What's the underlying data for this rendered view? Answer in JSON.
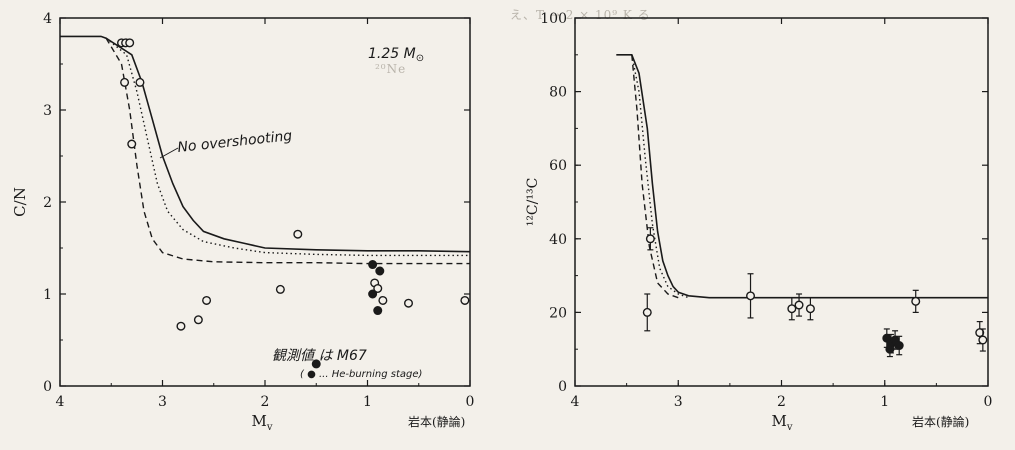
{
  "background_text": {
    "top": "え、T  → 2 × 10⁹ K  る",
    "mid": "²⁰Ne"
  },
  "chart_data": [
    {
      "type": "line",
      "title": "",
      "xlabel": "M",
      "xlabel_sub": "v",
      "ylabel": "C/N",
      "xlim": [
        4,
        0
      ],
      "ylim": [
        0,
        4
      ],
      "xticks": [
        "4",
        "3",
        "2",
        "1",
        "0"
      ],
      "yticks": [
        "0",
        "1",
        "2",
        "3",
        "4"
      ],
      "annotations": {
        "mass": "1.25 M",
        "mass_symbol": "⊙",
        "no_overshooting": "No overshooting",
        "observed": "観測値 は M67",
        "he_burning": "( ● ... He-burning stage)",
        "credit": "岩本(静論)"
      },
      "series": [
        {
          "style": "solid",
          "x": [
            4.0,
            3.6,
            3.55,
            3.3,
            3.2,
            3.1,
            3.0,
            2.9,
            2.8,
            2.7,
            2.6,
            2.4,
            2.2,
            2.0,
            1.5,
            1.0,
            0.5,
            0.0
          ],
          "y": [
            3.8,
            3.8,
            3.78,
            3.6,
            3.3,
            2.9,
            2.5,
            2.2,
            1.95,
            1.8,
            1.68,
            1.6,
            1.55,
            1.5,
            1.48,
            1.47,
            1.47,
            1.46
          ]
        },
        {
          "style": "dotted",
          "x": [
            3.55,
            3.35,
            3.25,
            3.15,
            3.05,
            2.95,
            2.8,
            2.6,
            2.3,
            2.0,
            1.5,
            1.0,
            0.5,
            0.0
          ],
          "y": [
            3.78,
            3.6,
            3.2,
            2.7,
            2.2,
            1.9,
            1.7,
            1.57,
            1.5,
            1.45,
            1.43,
            1.42,
            1.42,
            1.42
          ]
        },
        {
          "style": "dashed",
          "x": [
            3.55,
            3.4,
            3.32,
            3.25,
            3.18,
            3.1,
            3.0,
            2.8,
            2.5,
            2.0,
            1.5,
            1.0,
            0.5,
            0.0
          ],
          "y": [
            3.78,
            3.5,
            3.0,
            2.4,
            1.9,
            1.6,
            1.45,
            1.38,
            1.35,
            1.34,
            1.34,
            1.33,
            1.33,
            1.33
          ]
        }
      ],
      "open_points": [
        {
          "x": 3.4,
          "y": 3.73
        },
        {
          "x": 3.36,
          "y": 3.73
        },
        {
          "x": 3.32,
          "y": 3.73
        },
        {
          "x": 3.37,
          "y": 3.3
        },
        {
          "x": 3.22,
          "y": 3.3
        },
        {
          "x": 3.3,
          "y": 2.63
        },
        {
          "x": 1.68,
          "y": 1.65
        },
        {
          "x": 1.85,
          "y": 1.05
        },
        {
          "x": 0.6,
          "y": 0.9
        },
        {
          "x": 0.05,
          "y": 0.93
        },
        {
          "x": 2.82,
          "y": 0.65
        },
        {
          "x": 2.65,
          "y": 0.72
        },
        {
          "x": 2.57,
          "y": 0.93
        },
        {
          "x": 0.93,
          "y": 1.12
        },
        {
          "x": 0.9,
          "y": 1.06
        },
        {
          "x": 0.85,
          "y": 0.93
        }
      ],
      "filled_points": [
        {
          "x": 0.95,
          "y": 1.32
        },
        {
          "x": 0.88,
          "y": 1.25
        },
        {
          "x": 0.95,
          "y": 1.0
        },
        {
          "x": 0.9,
          "y": 0.82
        },
        {
          "x": 1.5,
          "y": 0.24
        }
      ]
    },
    {
      "type": "line",
      "title": "",
      "xlabel": "M",
      "xlabel_sub": "v",
      "ylabel": "¹²C/¹³C",
      "xlim": [
        4,
        0
      ],
      "ylim": [
        0,
        100
      ],
      "xticks": [
        "4",
        "3",
        "2",
        "1",
        "0"
      ],
      "yticks": [
        "0",
        "20",
        "40",
        "60",
        "80",
        "100"
      ],
      "annotations": {
        "credit": "岩本(静論)"
      },
      "series": [
        {
          "style": "solid",
          "x": [
            3.6,
            3.45,
            3.38,
            3.3,
            3.25,
            3.2,
            3.15,
            3.1,
            3.05,
            3.0,
            2.9,
            2.7,
            2.0,
            1.0,
            0.0
          ],
          "y": [
            90,
            90,
            85,
            70,
            55,
            42,
            34,
            30,
            27,
            25.5,
            24.5,
            24,
            24,
            24,
            24
          ]
        },
        {
          "style": "dotted",
          "x": [
            3.45,
            3.38,
            3.32,
            3.25,
            3.18,
            3.1,
            3.0,
            2.9
          ],
          "y": [
            90,
            80,
            62,
            44,
            32,
            27,
            25,
            24
          ]
        },
        {
          "style": "dashed",
          "x": [
            3.45,
            3.4,
            3.35,
            3.28,
            3.2,
            3.1,
            3.0
          ],
          "y": [
            90,
            75,
            55,
            38,
            28,
            25,
            24
          ]
        }
      ],
      "open_points": [
        {
          "x": 3.3,
          "y": 20,
          "err": 5
        },
        {
          "x": 3.27,
          "y": 40,
          "err": 3
        },
        {
          "x": 2.3,
          "y": 24.5,
          "err": 6
        },
        {
          "x": 1.9,
          "y": 21,
          "err": 3
        },
        {
          "x": 1.83,
          "y": 22,
          "err": 3
        },
        {
          "x": 1.72,
          "y": 21,
          "err": 3
        },
        {
          "x": 0.7,
          "y": 23,
          "err": 3
        },
        {
          "x": 0.08,
          "y": 14.5,
          "err": 3
        },
        {
          "x": 0.05,
          "y": 12.5,
          "err": 3
        }
      ],
      "filled_points": [
        {
          "x": 0.98,
          "y": 13,
          "err": 2.5
        },
        {
          "x": 0.94,
          "y": 11.5,
          "err": 2.5
        },
        {
          "x": 0.9,
          "y": 12.5,
          "err": 2.5
        },
        {
          "x": 0.86,
          "y": 11,
          "err": 2.5
        },
        {
          "x": 0.95,
          "y": 10,
          "err": 2
        }
      ]
    }
  ]
}
